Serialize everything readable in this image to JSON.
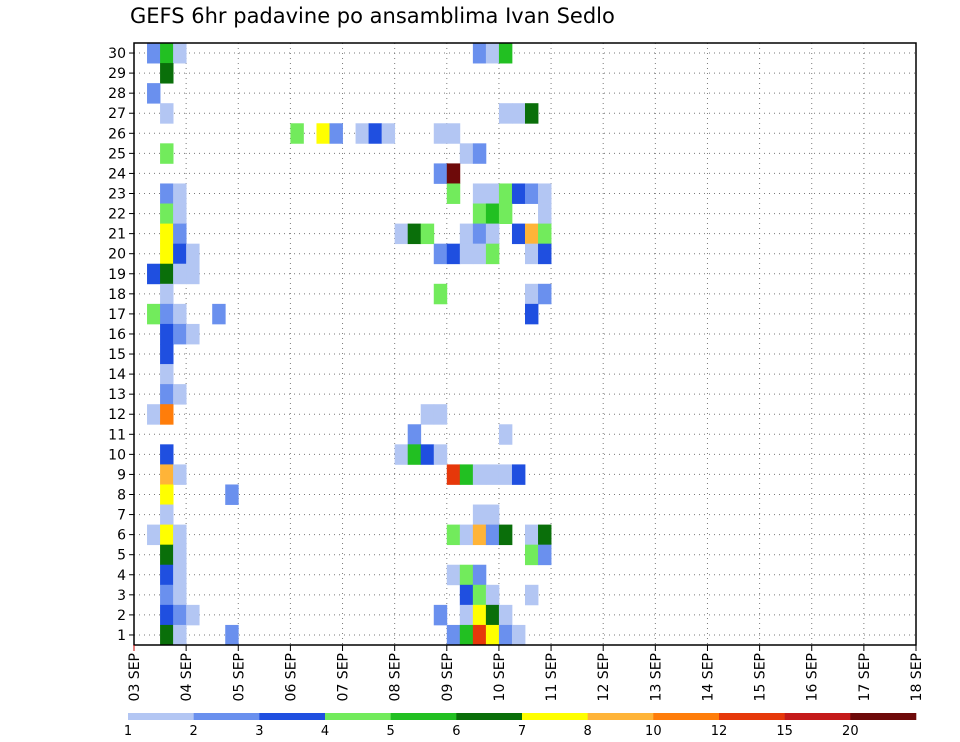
{
  "chart_data": {
    "type": "heatmap",
    "title": "GEFS 6hr padavine po ansamblima Ivan Sedlo",
    "xlabel": "",
    "ylabel": "",
    "x_tick_labels": [
      "03 SEP",
      "04 SEP",
      "05 SEP",
      "06 SEP",
      "07 SEP",
      "08 SEP",
      "09 SEP",
      "10 SEP",
      "11 SEP",
      "12 SEP",
      "13 SEP",
      "14 SEP",
      "15 SEP",
      "16 SEP",
      "17 SEP",
      "18 SEP"
    ],
    "y_tick_labels": [
      "1",
      "2",
      "3",
      "4",
      "5",
      "6",
      "7",
      "8",
      "9",
      "10",
      "11",
      "12",
      "13",
      "14",
      "15",
      "16",
      "17",
      "18",
      "19",
      "20",
      "21",
      "22",
      "23",
      "24",
      "25",
      "26",
      "27",
      "28",
      "29",
      "30"
    ],
    "xlim": [
      0,
      60
    ],
    "ylim": [
      0.5,
      30.5
    ],
    "x_unit": "6-hour steps from 03 SEP 00z",
    "y_unit": "ensemble member",
    "grid": true,
    "legend": {
      "placement": "bottom",
      "thresholds": [
        "1",
        "2",
        "3",
        "4",
        "5",
        "6",
        "7",
        "8",
        "10",
        "12",
        "15",
        "20"
      ],
      "colors": [
        "#b3c6f3",
        "#6a90ee",
        "#1f4fe0",
        "#72eb5c",
        "#22c022",
        "#0a6f0a",
        "#ffff00",
        "#ffb438",
        "#ff7d0a",
        "#e6380a",
        "#c41a1a",
        "#6e0a0a"
      ]
    },
    "cells": [
      [
        30,
        1,
        1
      ],
      [
        30,
        2,
        4
      ],
      [
        30,
        3,
        0
      ],
      [
        30,
        26,
        1
      ],
      [
        30,
        27,
        0
      ],
      [
        30,
        28,
        4
      ],
      [
        29,
        2,
        5
      ],
      [
        28,
        1,
        1
      ],
      [
        27,
        2,
        0
      ],
      [
        27,
        28,
        0
      ],
      [
        27,
        29,
        0
      ],
      [
        27,
        30,
        5
      ],
      [
        26,
        12,
        3
      ],
      [
        26,
        14,
        6
      ],
      [
        26,
        15,
        1
      ],
      [
        26,
        17,
        0
      ],
      [
        26,
        18,
        2
      ],
      [
        26,
        19,
        0
      ],
      [
        26,
        23,
        0
      ],
      [
        26,
        24,
        0
      ],
      [
        25,
        2,
        3
      ],
      [
        25,
        25,
        0
      ],
      [
        25,
        26,
        1
      ],
      [
        24,
        23,
        1
      ],
      [
        24,
        24,
        11
      ],
      [
        23,
        2,
        1
      ],
      [
        23,
        3,
        0
      ],
      [
        23,
        24,
        3
      ],
      [
        23,
        26,
        0
      ],
      [
        23,
        27,
        0
      ],
      [
        23,
        28,
        3
      ],
      [
        23,
        29,
        2
      ],
      [
        23,
        30,
        1
      ],
      [
        23,
        31,
        0
      ],
      [
        22,
        2,
        3
      ],
      [
        22,
        3,
        0
      ],
      [
        22,
        26,
        3
      ],
      [
        22,
        27,
        4
      ],
      [
        22,
        28,
        3
      ],
      [
        22,
        31,
        0
      ],
      [
        21,
        2,
        6
      ],
      [
        21,
        3,
        1
      ],
      [
        21,
        20,
        0
      ],
      [
        21,
        21,
        5
      ],
      [
        21,
        22,
        3
      ],
      [
        21,
        25,
        0
      ],
      [
        21,
        26,
        1
      ],
      [
        21,
        27,
        0
      ],
      [
        21,
        29,
        2
      ],
      [
        21,
        30,
        7
      ],
      [
        21,
        31,
        3
      ],
      [
        20,
        2,
        6
      ],
      [
        20,
        3,
        2
      ],
      [
        20,
        4,
        0
      ],
      [
        20,
        23,
        1
      ],
      [
        20,
        24,
        2
      ],
      [
        20,
        25,
        0
      ],
      [
        20,
        26,
        0
      ],
      [
        20,
        27,
        3
      ],
      [
        20,
        30,
        0
      ],
      [
        20,
        31,
        2
      ],
      [
        19,
        1,
        2
      ],
      [
        19,
        2,
        5
      ],
      [
        19,
        3,
        0
      ],
      [
        19,
        4,
        0
      ],
      [
        18,
        2,
        0
      ],
      [
        18,
        23,
        3
      ],
      [
        18,
        30,
        0
      ],
      [
        18,
        31,
        1
      ],
      [
        17,
        1,
        3
      ],
      [
        17,
        2,
        1
      ],
      [
        17,
        3,
        0
      ],
      [
        17,
        6,
        1
      ],
      [
        17,
        30,
        2
      ],
      [
        16,
        2,
        2
      ],
      [
        16,
        3,
        1
      ],
      [
        16,
        4,
        0
      ],
      [
        15,
        2,
        2
      ],
      [
        14,
        2,
        0
      ],
      [
        13,
        2,
        1
      ],
      [
        13,
        3,
        0
      ],
      [
        12,
        1,
        0
      ],
      [
        12,
        2,
        8
      ],
      [
        12,
        22,
        0
      ],
      [
        12,
        23,
        0
      ],
      [
        11,
        21,
        1
      ],
      [
        11,
        28,
        0
      ],
      [
        10,
        2,
        2
      ],
      [
        10,
        20,
        0
      ],
      [
        10,
        21,
        4
      ],
      [
        10,
        22,
        2
      ],
      [
        10,
        23,
        0
      ],
      [
        9,
        2,
        7
      ],
      [
        9,
        3,
        0
      ],
      [
        9,
        24,
        9
      ],
      [
        9,
        25,
        4
      ],
      [
        9,
        26,
        0
      ],
      [
        9,
        27,
        0
      ],
      [
        9,
        28,
        0
      ],
      [
        9,
        29,
        2
      ],
      [
        8,
        2,
        6
      ],
      [
        8,
        7,
        1
      ],
      [
        7,
        2,
        0
      ],
      [
        7,
        26,
        0
      ],
      [
        7,
        27,
        0
      ],
      [
        6,
        1,
        0
      ],
      [
        6,
        2,
        6
      ],
      [
        6,
        3,
        0
      ],
      [
        6,
        24,
        3
      ],
      [
        6,
        25,
        0
      ],
      [
        6,
        26,
        7
      ],
      [
        6,
        27,
        1
      ],
      [
        6,
        28,
        5
      ],
      [
        6,
        30,
        0
      ],
      [
        6,
        31,
        5
      ],
      [
        5,
        2,
        5
      ],
      [
        5,
        3,
        0
      ],
      [
        5,
        30,
        3
      ],
      [
        5,
        31,
        1
      ],
      [
        4,
        2,
        2
      ],
      [
        4,
        3,
        0
      ],
      [
        4,
        24,
        0
      ],
      [
        4,
        25,
        3
      ],
      [
        4,
        26,
        1
      ],
      [
        3,
        2,
        1
      ],
      [
        3,
        3,
        0
      ],
      [
        3,
        25,
        2
      ],
      [
        3,
        26,
        3
      ],
      [
        3,
        27,
        0
      ],
      [
        3,
        30,
        0
      ],
      [
        2,
        2,
        2
      ],
      [
        2,
        3,
        1
      ],
      [
        2,
        4,
        0
      ],
      [
        2,
        23,
        1
      ],
      [
        2,
        25,
        0
      ],
      [
        2,
        26,
        6
      ],
      [
        2,
        27,
        5
      ],
      [
        2,
        28,
        0
      ],
      [
        1,
        2,
        5
      ],
      [
        1,
        3,
        0
      ],
      [
        1,
        7,
        1
      ],
      [
        1,
        24,
        1
      ],
      [
        1,
        25,
        4
      ],
      [
        1,
        26,
        9
      ],
      [
        1,
        27,
        6
      ],
      [
        1,
        28,
        1
      ],
      [
        1,
        29,
        0
      ]
    ]
  }
}
